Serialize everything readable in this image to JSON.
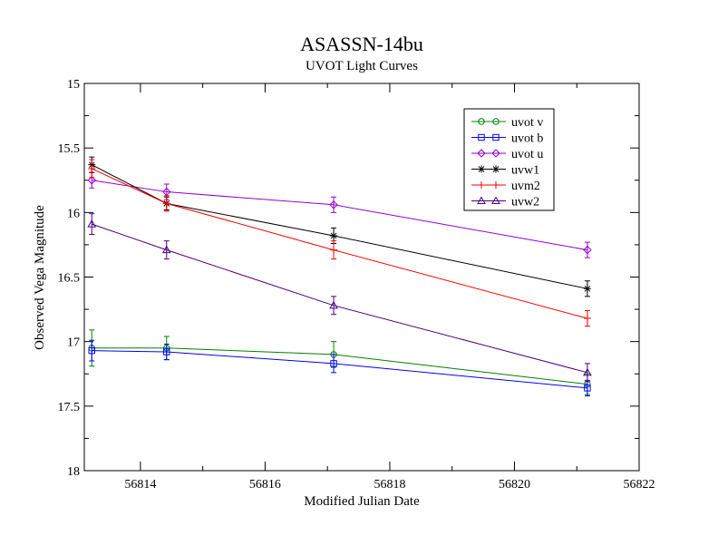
{
  "chart_data": {
    "type": "line",
    "title": "ASASSN-14bu",
    "subtitle": "UVOT Light Curves",
    "xlabel": "Modified Julian Date",
    "ylabel": "Observed Vega Magnitude",
    "xlim": [
      56813.1,
      56822
    ],
    "ylim": [
      15,
      18
    ],
    "y_inverted": true,
    "x_ticks": [
      56814,
      56816,
      56818,
      56820,
      56822
    ],
    "y_ticks": [
      15,
      15.5,
      16,
      16.5,
      17,
      17.5,
      18
    ],
    "x_tick_labels": [
      "56814",
      "56816",
      "56818",
      "56820",
      "56822"
    ],
    "y_tick_labels": [
      "15",
      "15.5",
      "16",
      "16.5",
      "17",
      "17.5",
      "18"
    ],
    "grid": false,
    "legend_position": "top-right",
    "series": [
      {
        "name": "uvot v",
        "color": "#008000",
        "marker": "circle",
        "x": [
          56813.22,
          56814.42,
          56817.1,
          56821.17
        ],
        "y": [
          17.05,
          17.05,
          17.1,
          17.33
        ],
        "err": [
          0.14,
          0.09,
          0.1,
          0.08
        ]
      },
      {
        "name": "uvot b",
        "color": "#0000ff",
        "marker": "square",
        "x": [
          56813.22,
          56814.42,
          56817.1,
          56821.17
        ],
        "y": [
          17.07,
          17.08,
          17.17,
          17.36
        ],
        "err": [
          0.08,
          0.06,
          0.07,
          0.06
        ]
      },
      {
        "name": "uvot u",
        "color": "#9400d3",
        "marker": "diamond",
        "x": [
          56813.22,
          56814.42,
          56817.1,
          56821.17
        ],
        "y": [
          15.75,
          15.84,
          15.94,
          16.29
        ],
        "err": [
          0.06,
          0.06,
          0.06,
          0.06
        ]
      },
      {
        "name": "uvw1",
        "color": "#000000",
        "marker": "star",
        "x": [
          56813.22,
          56814.42,
          56817.1,
          56821.17
        ],
        "y": [
          15.63,
          15.93,
          16.18,
          16.59
        ],
        "err": [
          0.06,
          0.05,
          0.06,
          0.06
        ]
      },
      {
        "name": "uvm2",
        "color": "#ff0000",
        "marker": "plus",
        "x": [
          56813.22,
          56814.42,
          56817.1,
          56821.17
        ],
        "y": [
          15.66,
          15.93,
          16.29,
          16.82
        ],
        "err": [
          0.07,
          0.06,
          0.07,
          0.06
        ]
      },
      {
        "name": "uvw2",
        "color": "#4b0082",
        "marker": "triangle",
        "x": [
          56813.22,
          56814.42,
          56817.1,
          56821.17
        ],
        "y": [
          16.09,
          16.29,
          16.72,
          17.24
        ],
        "err": [
          0.08,
          0.07,
          0.07,
          0.07
        ]
      }
    ]
  }
}
